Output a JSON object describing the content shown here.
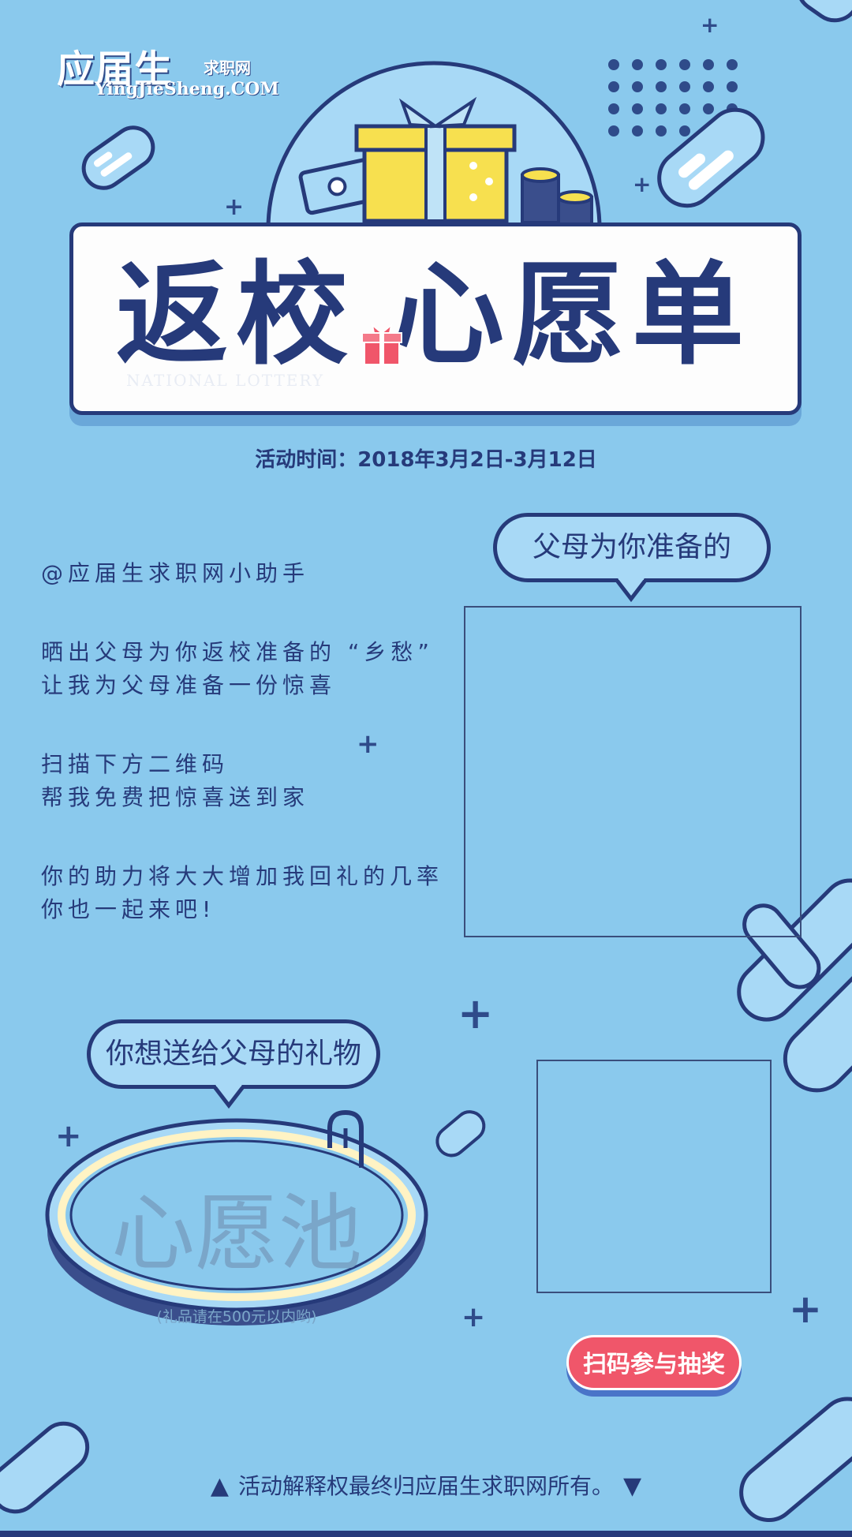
{
  "logo": {
    "main": "应届生",
    "sub": "求职网",
    "url": "YingJieSheng.COM"
  },
  "banner": {
    "title_part1": "返校",
    "title_part2": "心愿单",
    "faint_text": "NATIONAL LOTTERY"
  },
  "event": {
    "date": "活动时间：2018年3月2日-3月12日"
  },
  "parents_bubble": {
    "label": "父母为你准备的"
  },
  "message": {
    "mention": "@应届生求职网小助手",
    "p1_line1": "晒出父母为你返校准备的 “乡愁”",
    "p1_line2": "让我为父母准备一份惊喜",
    "p2_line1": "扫描下方二维码",
    "p2_line2": "帮我免费把惊喜送到家",
    "p3_line1": "你的助力将大大增加我回礼的几率",
    "p3_line2": "你也一起来吧!"
  },
  "gift_bubble": {
    "label": "你想送给父母的礼物"
  },
  "pool": {
    "title": "心愿池",
    "note": "(礼品请在500元以内哟)"
  },
  "cta": {
    "label": "扫码参与抽奖"
  },
  "footer": {
    "left_triangle": "▲",
    "text": "活动解释权最终归应届生求职网所有。",
    "right_triangle": "▼"
  },
  "colors": {
    "background": "#8ac9ed",
    "navy": "#263a7a",
    "accent_red": "#f0566a",
    "gift_yellow": "#f7e04f"
  }
}
